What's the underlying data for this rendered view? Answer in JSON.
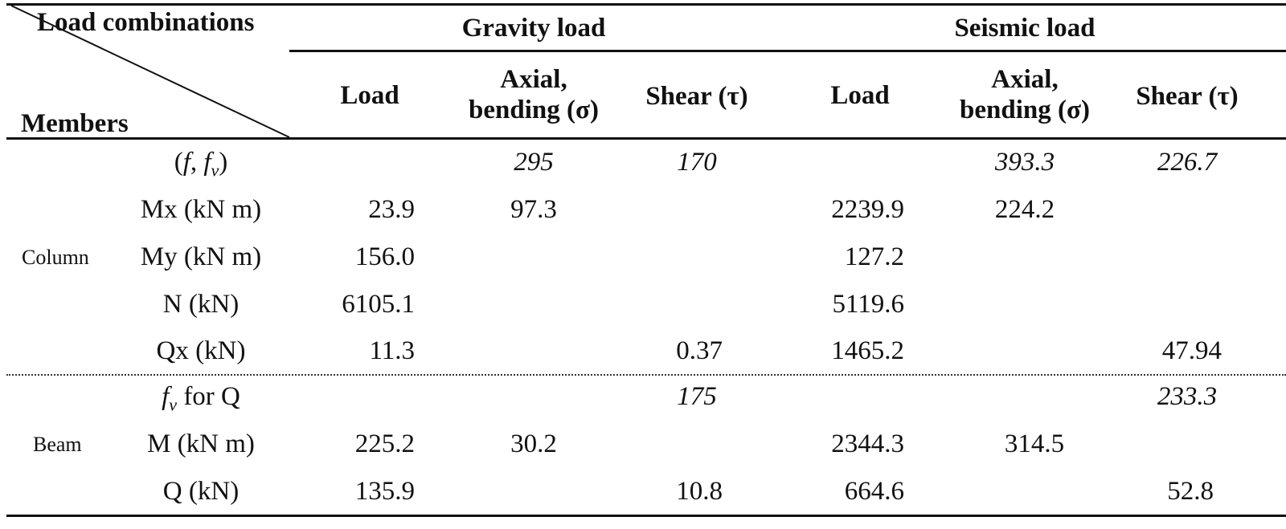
{
  "header": {
    "corner_top": "Load combinations",
    "corner_bottom": "Members",
    "groups": [
      "Gravity load",
      "Seismic load"
    ],
    "columns": [
      {
        "line1": "Load",
        "line2": ""
      },
      {
        "line1": "Axial,",
        "line2": "bending (σ)"
      },
      {
        "line1": "Shear (τ)",
        "line2": ""
      },
      {
        "line1": "Load",
        "line2": ""
      },
      {
        "line1": "Axial,",
        "line2": "bending (σ)"
      },
      {
        "line1": "Shear (τ)",
        "line2": ""
      }
    ]
  },
  "sections": [
    {
      "member": "Column",
      "rows": [
        {
          "label": "(f, fv)",
          "values": [
            "",
            "295",
            "170",
            "",
            "393.3",
            "226.7"
          ]
        },
        {
          "label": "Mx (kN m)",
          "values": [
            "23.9",
            "97.3",
            "",
            "2239.9",
            "224.2",
            ""
          ]
        },
        {
          "label": "My (kN m)",
          "values": [
            "156.0",
            "",
            "",
            "127.2",
            "",
            ""
          ]
        },
        {
          "label": "N (kN)",
          "values": [
            "6105.1",
            "",
            "",
            "5119.6",
            "",
            ""
          ]
        },
        {
          "label": "Qx (kN)",
          "values": [
            "11.3",
            "",
            "0.37",
            "1465.2",
            "",
            "47.94"
          ]
        }
      ]
    },
    {
      "member": "Beam",
      "rows": [
        {
          "label": "fv for Q",
          "values": [
            "",
            "",
            "175",
            "",
            "",
            "233.3"
          ]
        },
        {
          "label": "M (kN m)",
          "values": [
            "225.2",
            "30.2",
            "",
            "2344.3",
            "314.5",
            ""
          ]
        },
        {
          "label": "Q (kN)",
          "values": [
            "135.9",
            "",
            "10.8",
            "664.6",
            "",
            "52.8"
          ]
        }
      ]
    }
  ]
}
